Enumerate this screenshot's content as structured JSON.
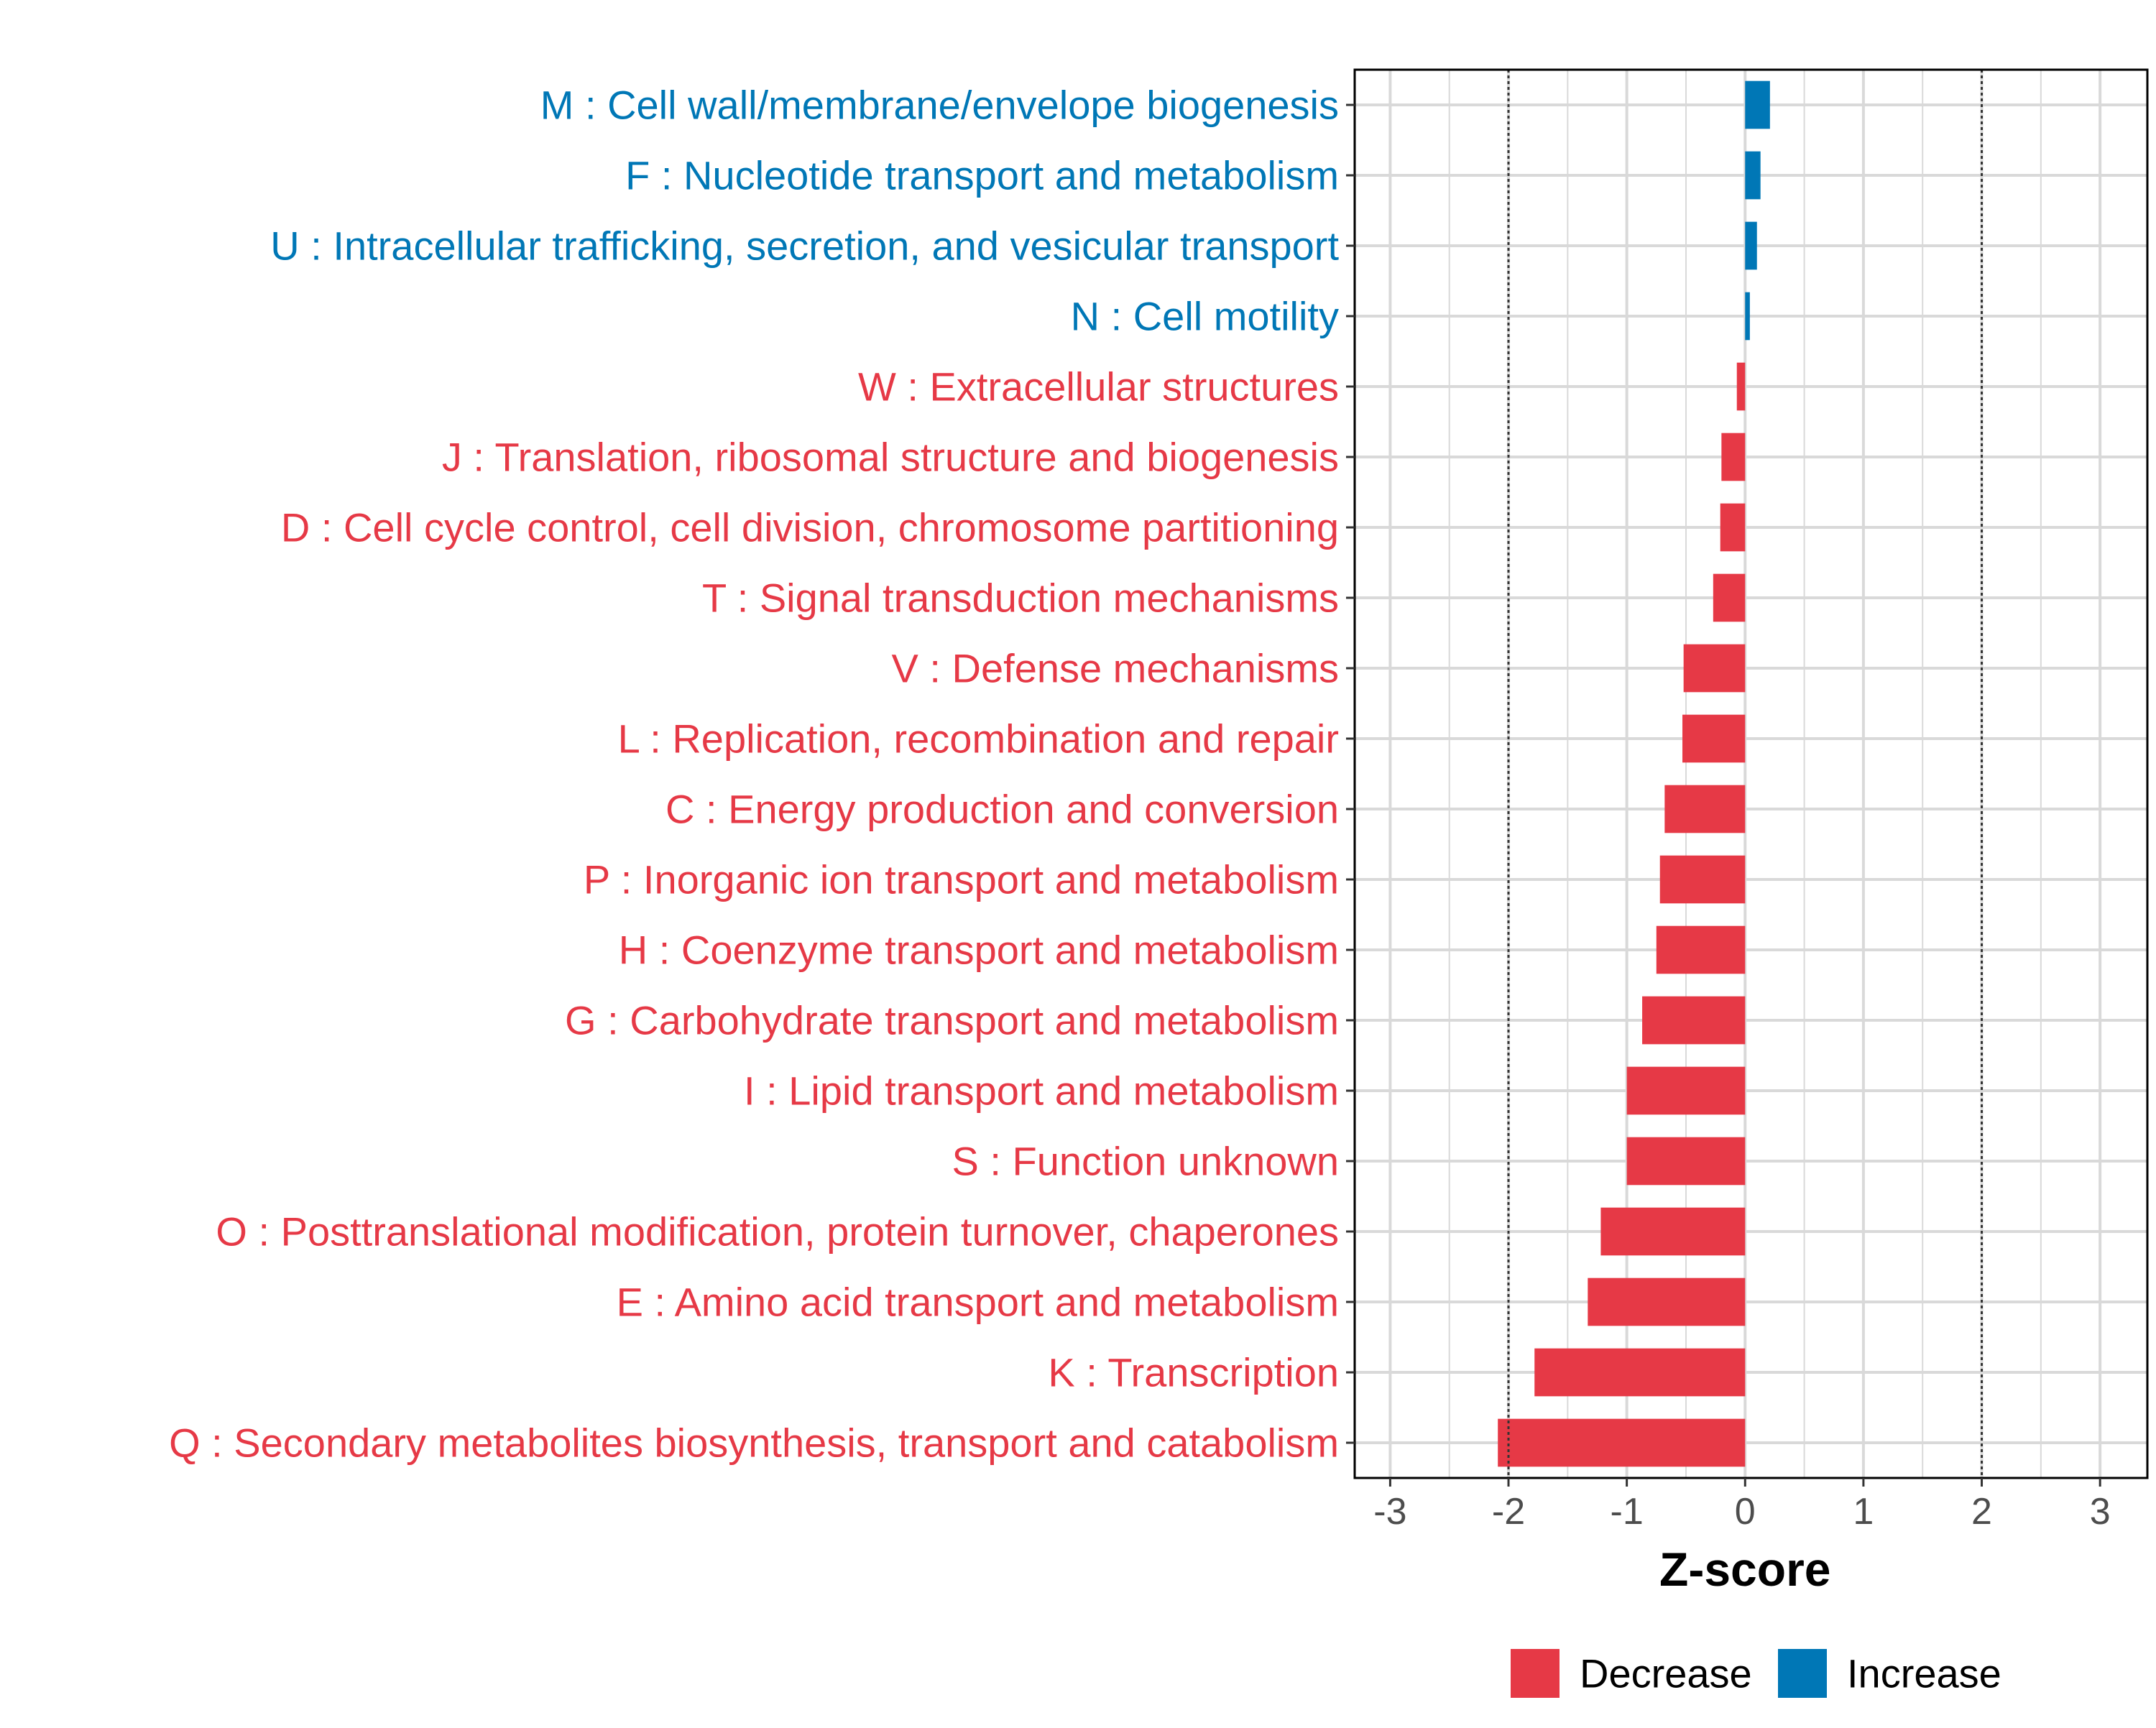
{
  "chart_data": {
    "type": "bar",
    "orientation": "horizontal",
    "title": "",
    "xlabel": "Z-score",
    "ylabel": "",
    "xlim": [
      -3.3,
      3.4
    ],
    "xticks": [
      -3,
      -2,
      -1,
      0,
      1,
      2,
      3
    ],
    "xtick_labels": [
      "-3",
      "-2",
      "-1",
      "0",
      "1",
      "2",
      "3"
    ],
    "reference_lines": [
      -2,
      2
    ],
    "grid": true,
    "legend_position": "bottom",
    "legend": [
      {
        "label": "Decrease",
        "color": "#E63946"
      },
      {
        "label": "Increase",
        "color": "#0077B6"
      }
    ],
    "categories": [
      "M : Cell wall/membrane/envelope biogenesis",
      "F : Nucleotide transport and metabolism",
      "U : Intracellular trafficking, secretion, and vesicular transport",
      "N : Cell motility",
      "W : Extracellular structures",
      "J : Translation, ribosomal structure and biogenesis",
      "D : Cell cycle control, cell division, chromosome partitioning",
      "T : Signal transduction mechanisms",
      "V : Defense mechanisms",
      "L : Replication, recombination and repair",
      "C : Energy production and conversion",
      "P : Inorganic ion transport and metabolism",
      "H : Coenzyme transport and metabolism",
      "G : Carbohydrate transport and metabolism",
      "I : Lipid transport and metabolism",
      "S : Function unknown",
      "O : Posttranslational modification, protein turnover, chaperones",
      "E : Amino acid transport and metabolism",
      "K : Transcription",
      "Q : Secondary metabolites biosynthesis, transport and catabolism"
    ],
    "values": [
      0.21,
      0.13,
      0.1,
      0.04,
      -0.07,
      -0.2,
      -0.21,
      -0.27,
      -0.52,
      -0.53,
      -0.68,
      -0.72,
      -0.75,
      -0.87,
      -1.0,
      -1.0,
      -1.22,
      -1.33,
      -1.78,
      -2.09
    ],
    "direction": [
      "Increase",
      "Increase",
      "Increase",
      "Increase",
      "Decrease",
      "Decrease",
      "Decrease",
      "Decrease",
      "Decrease",
      "Decrease",
      "Decrease",
      "Decrease",
      "Decrease",
      "Decrease",
      "Decrease",
      "Decrease",
      "Decrease",
      "Decrease",
      "Decrease",
      "Decrease"
    ]
  }
}
